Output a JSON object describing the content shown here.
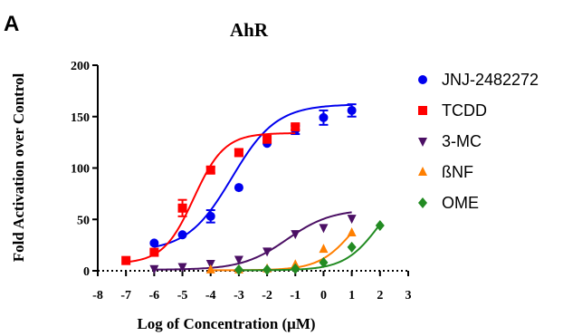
{
  "panel_label": "A",
  "chart_data": {
    "type": "scatter",
    "title": "AhR",
    "xlabel": "Log of Concentration (μM)",
    "ylabel": "Fold Activation over Control",
    "xlim": [
      -8,
      3
    ],
    "ylim": [
      0,
      200
    ],
    "xticks": [
      "-8",
      "-7",
      "-6",
      "-5",
      "-4",
      "-3",
      "-2",
      "-1",
      "0",
      "1",
      "2",
      "3"
    ],
    "yticks": [
      "0",
      "50",
      "100",
      "150",
      "200"
    ],
    "baseline_dotted_at_y": 0,
    "legend_position": "right",
    "grid": false,
    "series": [
      {
        "name": "JNJ-2482272",
        "color": "#0000ee",
        "marker": "circle",
        "x": [
          -6,
          -5,
          -4,
          -3,
          -2,
          -1,
          0,
          1
        ],
        "y": [
          27,
          35,
          53,
          81,
          124,
          137,
          149,
          156
        ],
        "err": [
          0,
          0,
          6,
          0,
          0,
          4,
          7,
          6
        ],
        "fit": {
          "bottom": 19,
          "top": 162,
          "logEC50": -3.25,
          "hill": 0.55,
          "xmin": -6,
          "xmax": 1
        }
      },
      {
        "name": "TCDD",
        "color": "#ff0000",
        "marker": "square",
        "x": [
          -7,
          -6,
          -5,
          -4,
          -3,
          -2,
          -1
        ],
        "y": [
          10,
          18,
          61,
          98,
          115,
          128,
          140
        ],
        "err": [
          0,
          0,
          8,
          3,
          3,
          0,
          3
        ],
        "fit": {
          "bottom": 7,
          "top": 134,
          "logEC50": -4.6,
          "hill": 0.8,
          "xmin": -7,
          "xmax": -1
        }
      },
      {
        "name": "3-MC",
        "color": "#4b0f64",
        "marker": "triangle-down",
        "x": [
          -6,
          -5,
          -4,
          -3,
          -2,
          -1,
          0,
          1
        ],
        "y": [
          2,
          4,
          7,
          11,
          19,
          36,
          42,
          51
        ],
        "err": [
          0,
          0,
          0,
          0,
          0,
          0,
          0,
          0
        ],
        "fit": {
          "bottom": 1,
          "top": 60,
          "logEC50": -1.3,
          "hill": 0.55,
          "xmin": -6,
          "xmax": 1
        }
      },
      {
        "name": "ßNF",
        "color": "#ff7f00",
        "marker": "triangle-up",
        "x": [
          -4,
          -3,
          -2,
          -1,
          0,
          1
        ],
        "y": [
          1,
          1,
          2,
          6,
          21,
          37
        ],
        "err": [
          0,
          0,
          0,
          0,
          0,
          0
        ],
        "fit": {
          "bottom": 0.5,
          "top": 80,
          "logEC50": 1.1,
          "hill": 0.7,
          "xmin": -4,
          "xmax": 1
        }
      },
      {
        "name": "OME",
        "color": "#228b22",
        "marker": "diamond",
        "x": [
          -3,
          -2,
          -1,
          0,
          1,
          2
        ],
        "y": [
          1,
          1,
          2,
          8,
          23,
          44
        ],
        "err": [
          0,
          0,
          0,
          0,
          0,
          0
        ],
        "fit": {
          "bottom": 0.5,
          "top": 90,
          "logEC50": 2.0,
          "hill": 0.7,
          "xmin": -3,
          "xmax": 2
        }
      }
    ]
  }
}
